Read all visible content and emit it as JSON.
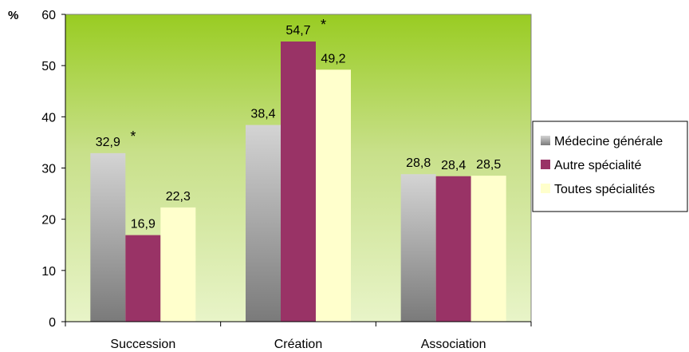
{
  "chart_data": {
    "type": "bar",
    "ylabel": "%",
    "ylim": [
      0,
      60
    ],
    "yticks": [
      "0",
      "10",
      "20",
      "30",
      "40",
      "50",
      "60"
    ],
    "grid": false,
    "legend_position": "right",
    "categories": [
      "Succession",
      "Création",
      "Association"
    ],
    "series": [
      {
        "name": "Médecine générale",
        "values": [
          32.9,
          38.4,
          28.8
        ],
        "labels": [
          "32,9",
          "38,4",
          "28,8"
        ],
        "marks": [
          "*",
          "",
          ""
        ],
        "color": "#b5b5b5"
      },
      {
        "name": "Autre spécialité",
        "values": [
          16.9,
          54.7,
          28.4
        ],
        "labels": [
          "16,9",
          "54,7",
          "28,4"
        ],
        "marks": [
          "",
          "*",
          ""
        ],
        "color": "#993366"
      },
      {
        "name": "Toutes spécialités",
        "values": [
          22.3,
          49.2,
          28.5
        ],
        "labels": [
          "22,3",
          "49,2",
          "28,5"
        ],
        "marks": [
          "",
          "",
          ""
        ],
        "color": "#ffffcc"
      }
    ],
    "colors": {
      "plot_top": "#99cc22",
      "plot_bottom": "#e8f4c8",
      "axis": "#808080"
    }
  }
}
